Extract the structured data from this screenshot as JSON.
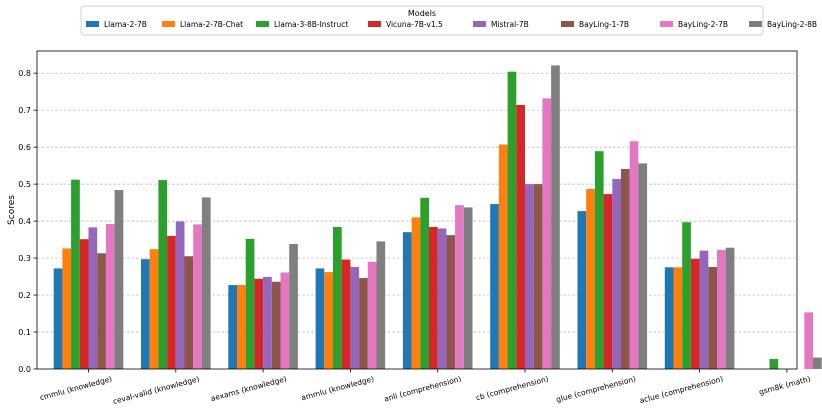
{
  "chart_data": {
    "type": "bar",
    "title": "",
    "xlabel": "",
    "ylabel": "Scores",
    "ylim": [
      0,
      0.86
    ],
    "yticks": [
      0.0,
      0.1,
      0.2,
      0.3,
      0.4,
      0.5,
      0.6,
      0.7,
      0.8
    ],
    "ytick_labels": [
      "0.0",
      "0.1",
      "0.2",
      "0.3",
      "0.4",
      "0.5",
      "0.6",
      "0.7",
      "0.8"
    ],
    "grid": true,
    "legend_title": "Models",
    "legend_position": "top-center",
    "categories": [
      "cmmlu (knowledge)",
      "ceval-valid (knowledge)",
      "aexams (knowledge)",
      "ammlu (knowledge)",
      "anli (comprehension)",
      "cb (comprehension)",
      "glue (comprehension)",
      "aclue (comprehension)",
      "gsm8k (math)"
    ],
    "series": [
      {
        "name": "Llama-2-7B",
        "color": "#1f77b4",
        "values": [
          0.272,
          0.297,
          0.227,
          0.272,
          0.37,
          0.446,
          0.427,
          0.275,
          0.0
        ]
      },
      {
        "name": "Llama-2-7B-Chat",
        "color": "#ff7f0e",
        "values": [
          0.326,
          0.324,
          0.227,
          0.262,
          0.41,
          0.607,
          0.487,
          0.275,
          0.0
        ]
      },
      {
        "name": "Llama-3-8B-Instruct",
        "color": "#2ca02c",
        "values": [
          0.512,
          0.511,
          0.352,
          0.384,
          0.463,
          0.804,
          0.589,
          0.397,
          0.027
        ]
      },
      {
        "name": "Vicuna-7B-v1.5",
        "color": "#d62728",
        "values": [
          0.351,
          0.36,
          0.244,
          0.296,
          0.384,
          0.714,
          0.473,
          0.298,
          0.0
        ]
      },
      {
        "name": "Mistral-7B",
        "color": "#9467bd",
        "values": [
          0.383,
          0.399,
          0.249,
          0.276,
          0.38,
          0.5,
          0.514,
          0.32,
          0.0
        ]
      },
      {
        "name": "BayLing-1-7B",
        "color": "#8c564b",
        "values": [
          0.313,
          0.305,
          0.236,
          0.246,
          0.362,
          0.5,
          0.541,
          0.276,
          0.0
        ]
      },
      {
        "name": "BayLing-2-7B",
        "color": "#e377c2",
        "values": [
          0.392,
          0.391,
          0.261,
          0.29,
          0.443,
          0.732,
          0.616,
          0.322,
          0.153
        ]
      },
      {
        "name": "BayLing-2-8B",
        "color": "#7f7f7f",
        "values": [
          0.484,
          0.464,
          0.338,
          0.345,
          0.437,
          0.821,
          0.556,
          0.328,
          0.031
        ]
      }
    ]
  }
}
